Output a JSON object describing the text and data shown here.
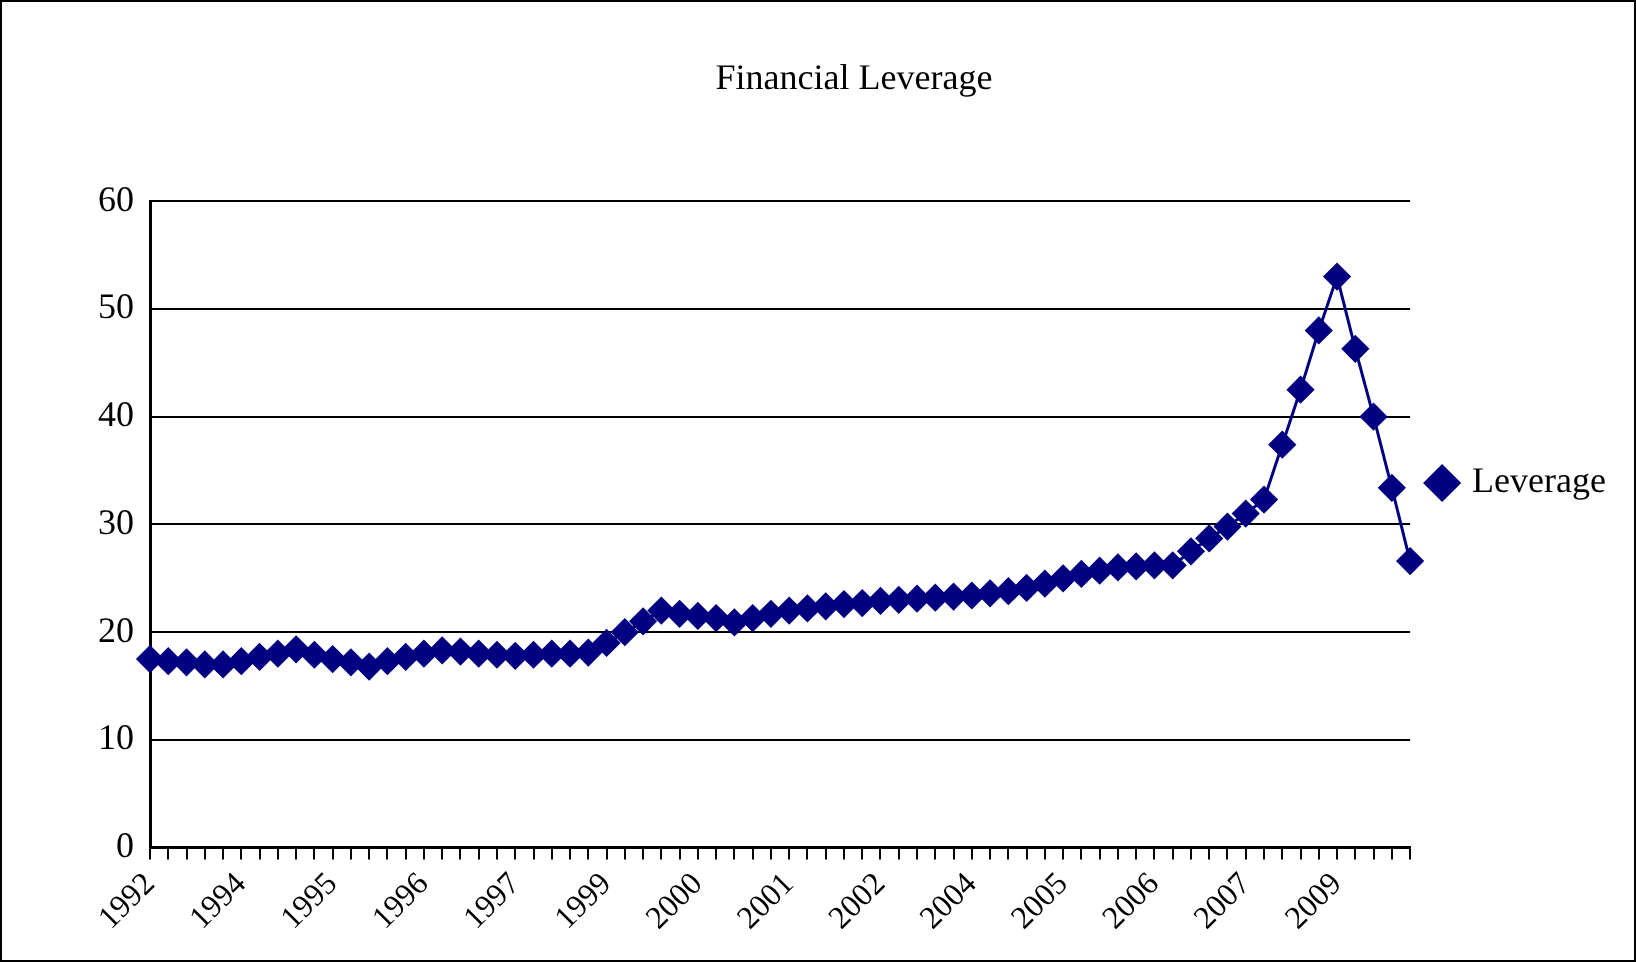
{
  "chart_data": {
    "type": "line",
    "title": "Financial Leverage",
    "categories": [
      "1992",
      null,
      null,
      null,
      null,
      "1994",
      null,
      null,
      null,
      null,
      "1995",
      null,
      null,
      null,
      null,
      "1996",
      null,
      null,
      null,
      null,
      "1997",
      null,
      null,
      null,
      null,
      "1999",
      null,
      null,
      null,
      null,
      "2000",
      null,
      null,
      null,
      null,
      "2001",
      null,
      null,
      null,
      null,
      "2002",
      null,
      null,
      null,
      null,
      "2004",
      null,
      null,
      null,
      null,
      "2005",
      null,
      null,
      null,
      null,
      "2006",
      null,
      null,
      null,
      null,
      "2007",
      null,
      null,
      null,
      null,
      "2009",
      null,
      null,
      null,
      null
    ],
    "series": [
      {
        "name": "Leverage",
        "color": "#000080",
        "values": [
          17.5,
          17.3,
          17.2,
          17.0,
          17.0,
          17.3,
          17.7,
          18.0,
          18.4,
          17.9,
          17.5,
          17.2,
          16.8,
          17.3,
          17.7,
          18.0,
          18.3,
          18.2,
          18.0,
          17.9,
          17.8,
          17.9,
          18.0,
          18.0,
          18.1,
          19.0,
          20.0,
          21.0,
          22.0,
          21.7,
          21.5,
          21.3,
          20.9,
          21.3,
          21.7,
          22.0,
          22.2,
          22.4,
          22.6,
          22.7,
          22.9,
          23.0,
          23.1,
          23.2,
          23.3,
          23.4,
          23.6,
          23.8,
          24.1,
          24.5,
          25.0,
          25.4,
          25.7,
          26.0,
          26.1,
          26.2,
          26.2,
          27.5,
          28.7,
          29.8,
          31.0,
          32.3,
          37.4,
          42.5,
          48.0,
          53.0,
          46.3,
          40.0,
          33.4,
          26.6
        ]
      }
    ],
    "ylim": [
      0,
      60
    ],
    "yticks": [
      0,
      10,
      20,
      30,
      40,
      50,
      60
    ],
    "grid": "y",
    "legend": "right",
    "marker": "diamond",
    "line_style": "solid"
  }
}
